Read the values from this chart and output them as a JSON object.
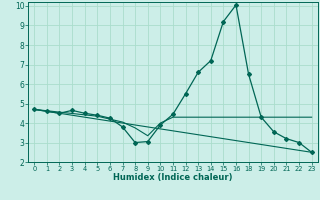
{
  "xlabel": "Humidex (Indice chaleur)",
  "bg_color": "#cceee8",
  "grid_color": "#aaddcc",
  "line_color": "#006655",
  "xlim": [
    -0.5,
    23.5
  ],
  "ylim": [
    2,
    10.2
  ],
  "yticks": [
    2,
    3,
    4,
    5,
    6,
    7,
    8,
    9,
    10
  ],
  "xticks": [
    0,
    1,
    2,
    3,
    4,
    5,
    6,
    7,
    8,
    9,
    10,
    11,
    12,
    13,
    14,
    15,
    16,
    18,
    19,
    20,
    21,
    22,
    23
  ],
  "xtick_labels": [
    "0",
    "1",
    "2",
    "3",
    "4",
    "5",
    "6",
    "7",
    "8",
    "9",
    "10",
    "11",
    "12",
    "13",
    "14",
    "15",
    "16",
    "18",
    "19",
    "20",
    "21",
    "22",
    "23"
  ],
  "series1_x": [
    0,
    1,
    2,
    3,
    4,
    5,
    6,
    7,
    8,
    9,
    10,
    11,
    12,
    13,
    14,
    15,
    16,
    18,
    19,
    20,
    21,
    22,
    23
  ],
  "series1_y": [
    4.7,
    4.6,
    4.5,
    4.65,
    4.5,
    4.4,
    4.25,
    3.8,
    3.0,
    3.05,
    3.9,
    4.45,
    5.5,
    6.6,
    7.2,
    9.2,
    10.05,
    6.5,
    4.3,
    3.55,
    3.2,
    3.0,
    2.5
  ],
  "series2_x": [
    0,
    5,
    6,
    7,
    8,
    9,
    10,
    11,
    12,
    13,
    14,
    15,
    16,
    18,
    19,
    20,
    21,
    22,
    23
  ],
  "series2_y": [
    4.7,
    4.35,
    4.2,
    4.05,
    3.75,
    3.35,
    4.0,
    4.3,
    4.3,
    4.3,
    4.3,
    4.3,
    4.3,
    4.3,
    4.3,
    4.3,
    4.3,
    4.3,
    4.3
  ],
  "series3_x": [
    0,
    23
  ],
  "series3_y": [
    4.7,
    2.5
  ]
}
